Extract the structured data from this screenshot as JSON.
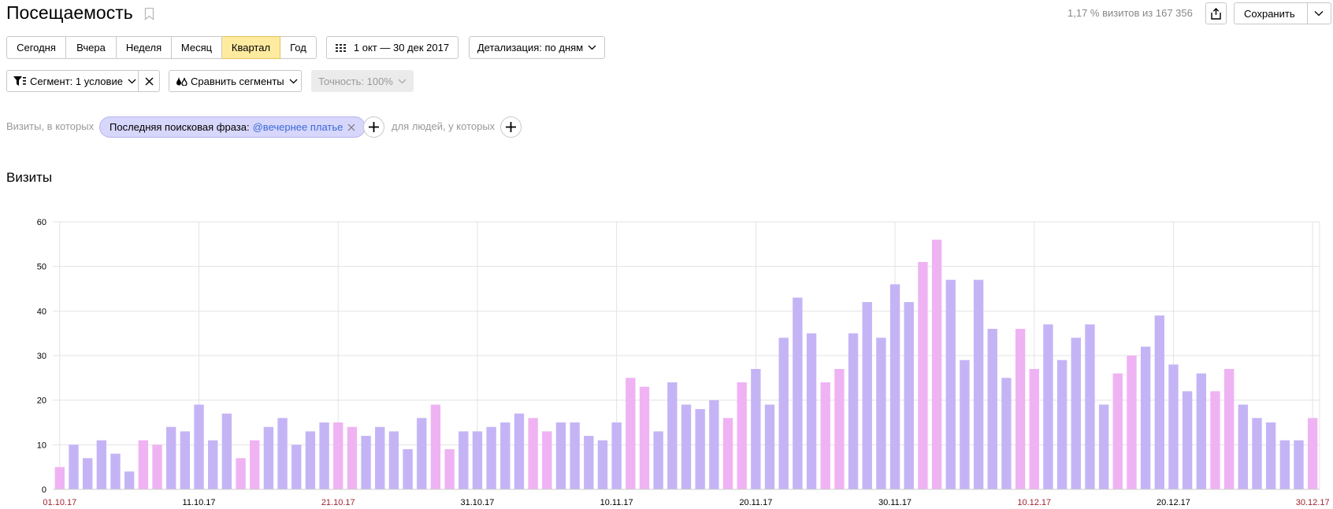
{
  "header": {
    "title": "Посещаемость",
    "visits_share": "1,17 % визитов из 167 356",
    "save_label": "Сохранить"
  },
  "periods": [
    {
      "label": "Сегодня",
      "active": false
    },
    {
      "label": "Вчера",
      "active": false
    },
    {
      "label": "Неделя",
      "active": false
    },
    {
      "label": "Месяц",
      "active": false
    },
    {
      "label": "Квартал",
      "active": true
    },
    {
      "label": "Год",
      "active": false
    }
  ],
  "date_range": "1 окт — 30 дек 2017",
  "detail": "Детализация: по дням",
  "segment": {
    "label": "Сегмент: 1 условие",
    "compare_label": "Сравнить сегменты",
    "accuracy_label": "Точность: 100%"
  },
  "filter": {
    "prefix": "Визиты, в которых",
    "chip_name": "Последняя поисковая фраза:",
    "chip_value": "@вечернее платье",
    "people_text": "для людей, у которых"
  },
  "chart_title": "Визиты",
  "colors": {
    "weekday": "#c5b4f5",
    "weekend": "#efb3f3",
    "active_period": "#ffeba0",
    "chip": "#d7d6fb",
    "holiday_label": "#a1232f"
  },
  "chart_data": {
    "type": "bar",
    "title": "Визиты",
    "ylim": [
      0,
      60
    ],
    "yticks": [
      0,
      10,
      20,
      30,
      40,
      50,
      60
    ],
    "x_tick_labels": [
      {
        "label": "01.10.17",
        "index": 0,
        "red": true
      },
      {
        "label": "11.10.17",
        "index": 10,
        "red": false
      },
      {
        "label": "21.10.17",
        "index": 20,
        "red": true
      },
      {
        "label": "31.10.17",
        "index": 30,
        "red": false
      },
      {
        "label": "10.11.17",
        "index": 40,
        "red": false
      },
      {
        "label": "20.11.17",
        "index": 50,
        "red": false
      },
      {
        "label": "30.11.17",
        "index": 60,
        "red": false
      },
      {
        "label": "10.12.17",
        "index": 70,
        "red": true
      },
      {
        "label": "20.12.17",
        "index": 80,
        "red": false
      },
      {
        "label": "30.12.17",
        "index": 90,
        "red": true
      }
    ],
    "start_date": "2017-10-01",
    "values": [
      5,
      10,
      7,
      11,
      8,
      4,
      11,
      10,
      14,
      13,
      19,
      11,
      17,
      7,
      11,
      14,
      16,
      10,
      13,
      15,
      15,
      14,
      12,
      14,
      13,
      9,
      16,
      19,
      9,
      13,
      13,
      14,
      15,
      17,
      16,
      13,
      15,
      15,
      12,
      11,
      15,
      25,
      23,
      13,
      24,
      19,
      18,
      20,
      16,
      24,
      27,
      19,
      34,
      43,
      35,
      24,
      27,
      35,
      42,
      34,
      46,
      42,
      51,
      56,
      47,
      29,
      47,
      36,
      25,
      36,
      27,
      37,
      29,
      34,
      37,
      19,
      26,
      30,
      32,
      39,
      28,
      22,
      26,
      22,
      27,
      19,
      16,
      15,
      11,
      11,
      16
    ],
    "grid": true
  }
}
